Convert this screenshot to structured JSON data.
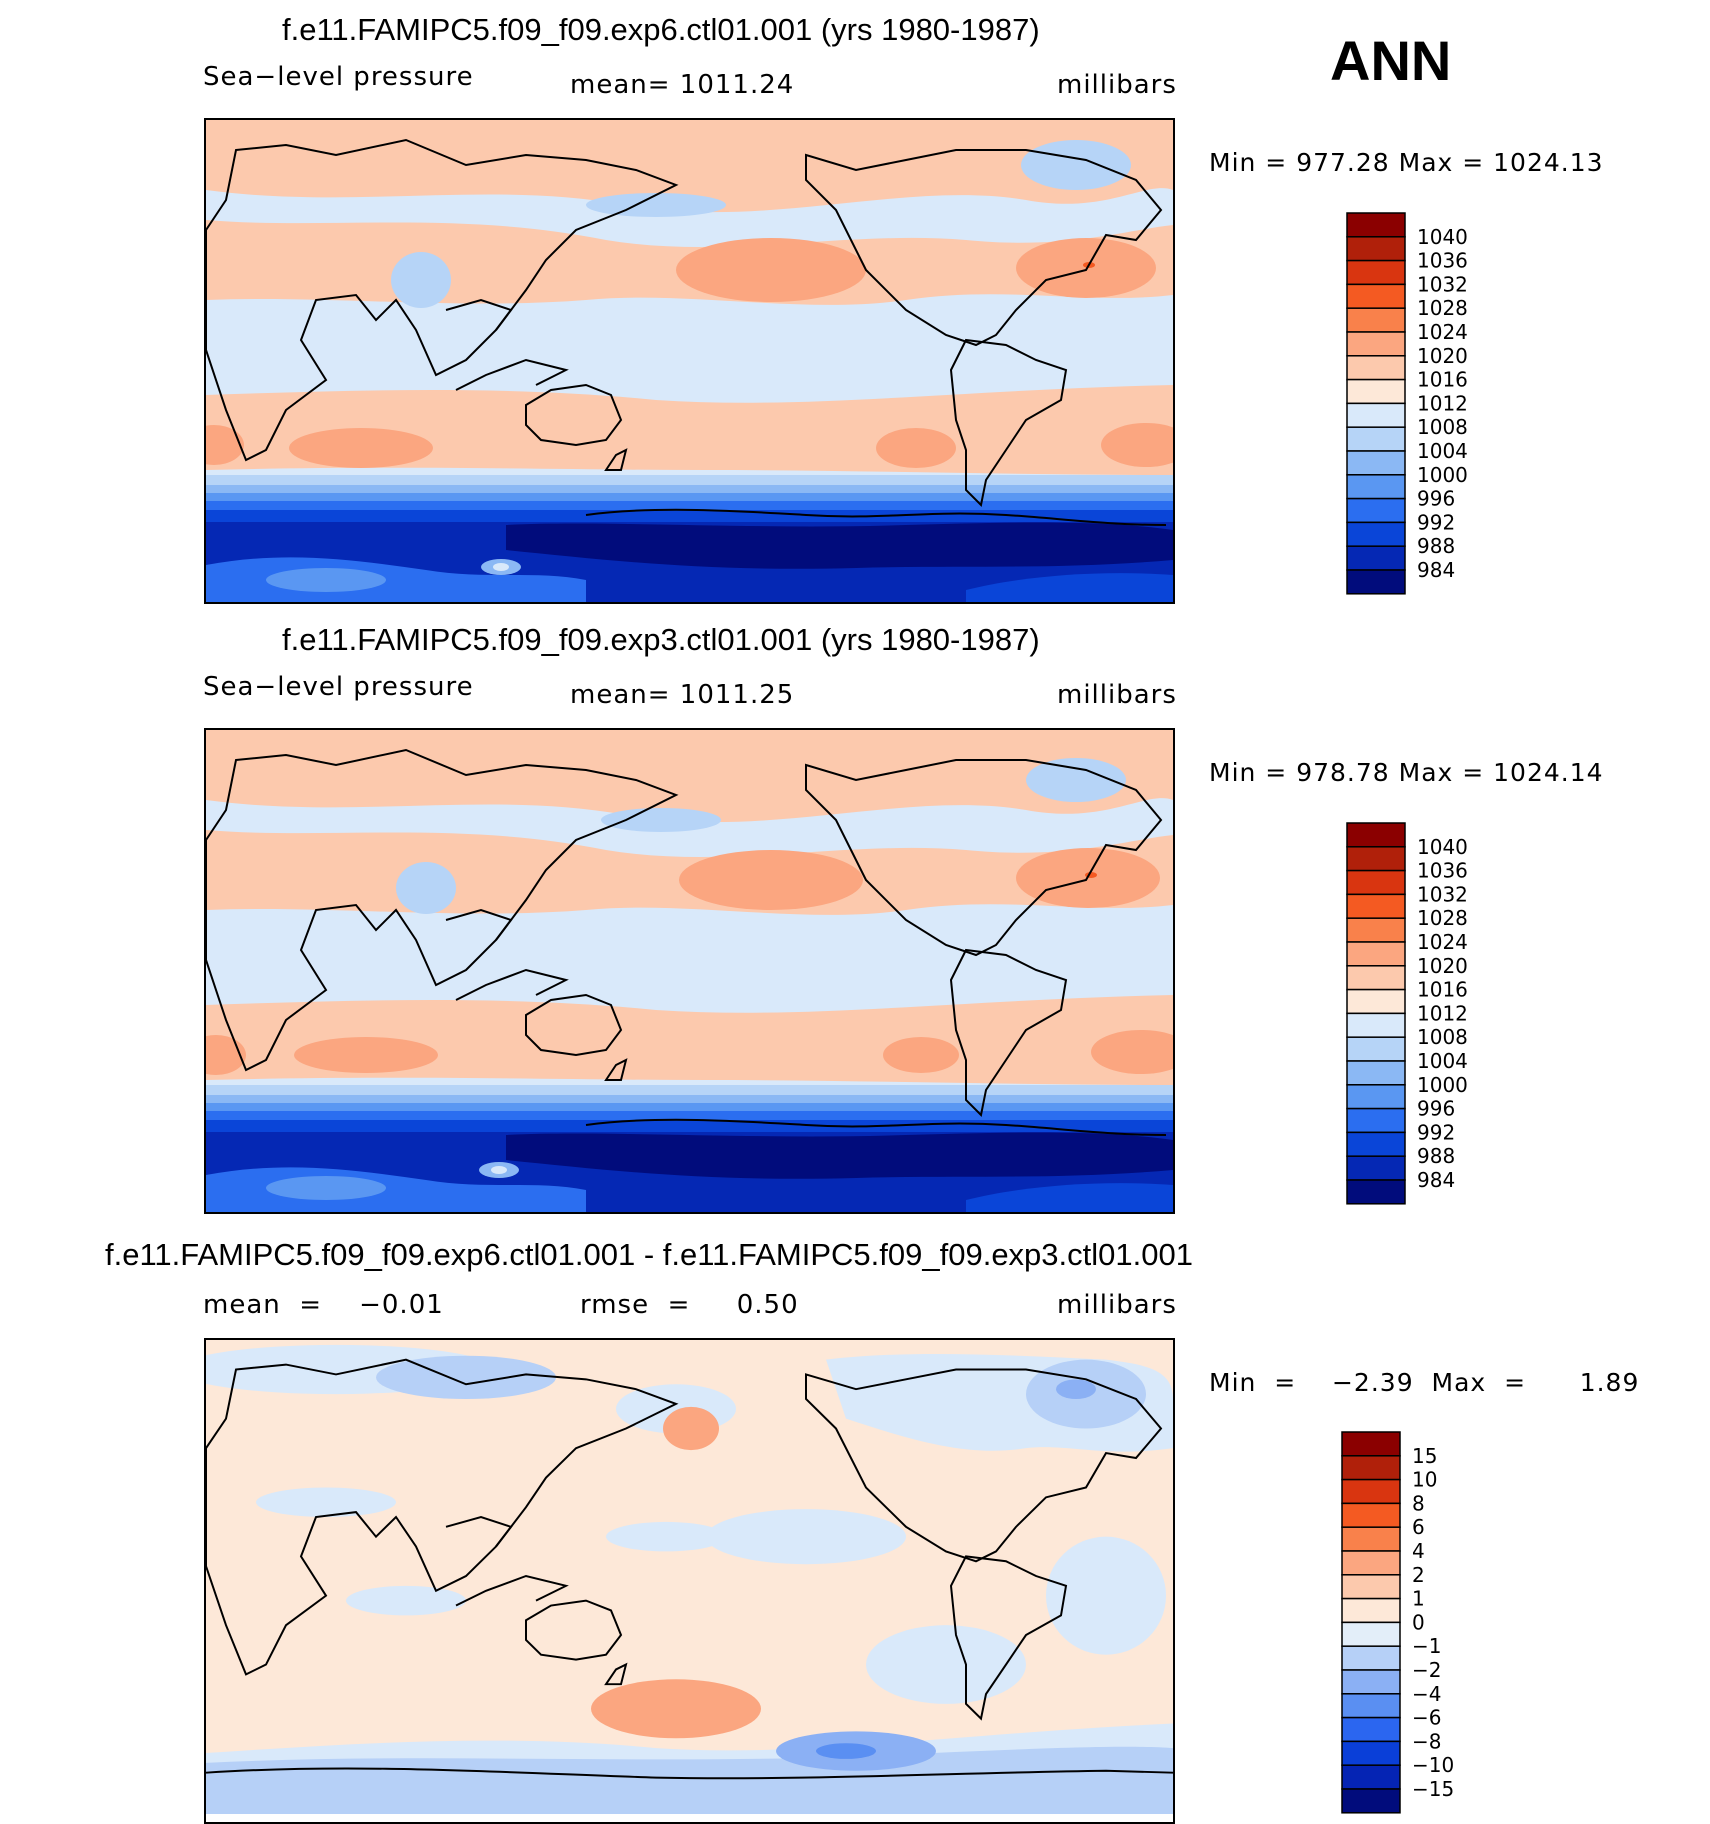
{
  "season": "ANN",
  "panels": [
    {
      "title": "f.e11.FAMIPC5.f09_f09.exp6.ctl01.001 (yrs 1980-1987)",
      "left": "Sea−level  pressure",
      "center": "mean=  1011.24",
      "right": "millibars",
      "minmax": "Min  =  977.28  Max  =  1024.13",
      "colorbar": {
        "labels": [
          "1040",
          "1036",
          "1032",
          "1028",
          "1024",
          "1020",
          "1016",
          "1012",
          "1008",
          "1004",
          "1000",
          "996",
          "992",
          "988",
          "984"
        ],
        "colors": [
          "#8b0000",
          "#b0200a",
          "#d93510",
          "#f45a22",
          "#f9814b",
          "#fba680",
          "#fcc9ad",
          "#fde8d8",
          "#d9e9fa",
          "#b6d4f7",
          "#8bb8f4",
          "#5a97f2",
          "#2b6ef0",
          "#0a45d8",
          "#0528b4",
          "#010c7c"
        ]
      }
    },
    {
      "title": "f.e11.FAMIPC5.f09_f09.exp3.ctl01.001 (yrs 1980-1987)",
      "left": "Sea−level  pressure",
      "center": "mean=  1011.25",
      "right": "millibars",
      "minmax": "Min  =  978.78  Max  =  1024.14",
      "colorbar": {
        "labels": [
          "1040",
          "1036",
          "1032",
          "1028",
          "1024",
          "1020",
          "1016",
          "1012",
          "1008",
          "1004",
          "1000",
          "996",
          "992",
          "988",
          "984"
        ],
        "colors": [
          "#8b0000",
          "#b0200a",
          "#d93510",
          "#f45a22",
          "#f9814b",
          "#fba680",
          "#fcc9ad",
          "#fde8d8",
          "#d9e9fa",
          "#b6d4f7",
          "#8bb8f4",
          "#5a97f2",
          "#2b6ef0",
          "#0a45d8",
          "#0528b4",
          "#010c7c"
        ]
      }
    },
    {
      "title": "f.e11.FAMIPC5.f09_f09.exp6.ctl01.001 - f.e11.FAMIPC5.f09_f09.exp3.ctl01.001",
      "left": "mean  =    −0.01",
      "center": "rmse  =     0.50",
      "right": "millibars",
      "minmax": "Min  =    −2.39  Max  =      1.89",
      "colorbar": {
        "labels": [
          "15",
          "10",
          "8",
          "6",
          "4",
          "2",
          "1",
          "0",
          "−1",
          "−2",
          "−4",
          "−6",
          "−8",
          "−10",
          "−15"
        ],
        "colors": [
          "#8b0000",
          "#b0200a",
          "#d93510",
          "#f45a22",
          "#f9814b",
          "#fba680",
          "#fcc9ad",
          "#fde8d8",
          "#e3eef9",
          "#b6d0f7",
          "#8bb0f4",
          "#5a8ff2",
          "#2b66f0",
          "#0a3fd8",
          "#0524b4",
          "#010c7c"
        ]
      }
    }
  ],
  "map_colors": {
    "ocean_low": "#d9e9fa",
    "warm_light": "#fcc9ad",
    "warm_mid": "#fba680",
    "warm_strong": "#f9814b",
    "cool_mid": "#b6d4f7",
    "cool_strong": "#8bb8f4",
    "diff_pos": "#fde8d8",
    "diff_neg": "#d9e9fa",
    "diff_neg2": "#b6d0f7",
    "diff_neg3": "#8bb0f4",
    "diff_pos2": "#fba680"
  }
}
